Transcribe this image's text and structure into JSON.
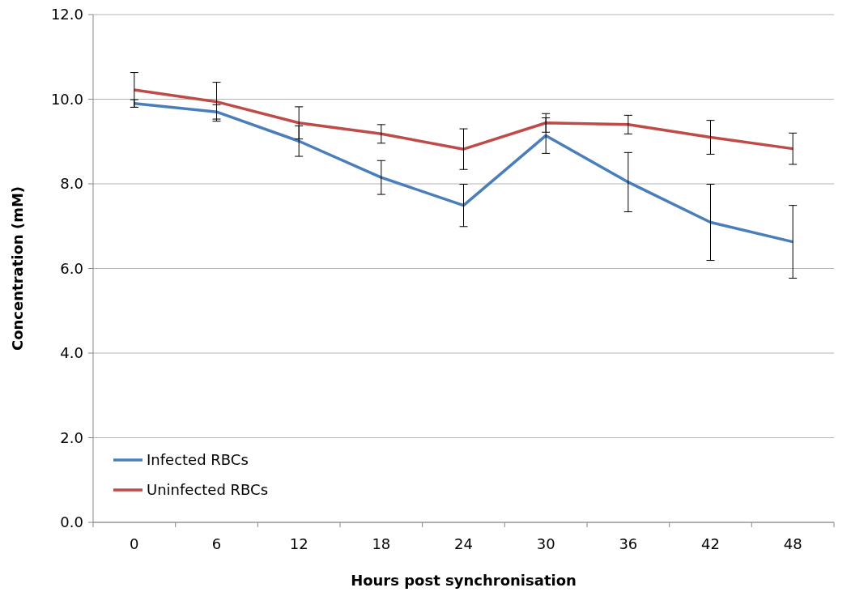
{
  "chart_data": {
    "type": "line",
    "xlabel": "Hours post synchronisation",
    "ylabel": "Concentration (mM)",
    "categories": [
      "0",
      "6",
      "12",
      "18",
      "24",
      "30",
      "36",
      "42",
      "48"
    ],
    "ylim": [
      0,
      12
    ],
    "yticks": [
      {
        "value": 0,
        "label": "0.0"
      },
      {
        "value": 2,
        "label": "2.0"
      },
      {
        "value": 4,
        "label": "4.0"
      },
      {
        "value": 6,
        "label": "6.0"
      },
      {
        "value": 8,
        "label": "8.0"
      },
      {
        "value": 10,
        "label": "10.0"
      },
      {
        "value": 12,
        "label": "12.0"
      }
    ],
    "grid": "y",
    "legend": "bottom left",
    "marker": "none",
    "line_style": "solid",
    "series": [
      {
        "name": "Infected RBCs",
        "color": "#4a7ebb",
        "values": [
          9.9,
          9.7,
          9.01,
          8.15,
          7.49,
          9.14,
          8.04,
          7.09,
          6.63
        ],
        "errors": [
          0.09,
          0.17,
          0.36,
          0.4,
          0.5,
          0.42,
          0.7,
          0.9,
          0.86
        ]
      },
      {
        "name": "Uninfected RBCs",
        "color": "#be4b48",
        "values": [
          10.22,
          9.94,
          9.44,
          9.18,
          8.82,
          9.44,
          9.4,
          9.1,
          8.83
        ],
        "errors": [
          0.41,
          0.46,
          0.38,
          0.22,
          0.48,
          0.22,
          0.22,
          0.4,
          0.37
        ]
      }
    ]
  }
}
